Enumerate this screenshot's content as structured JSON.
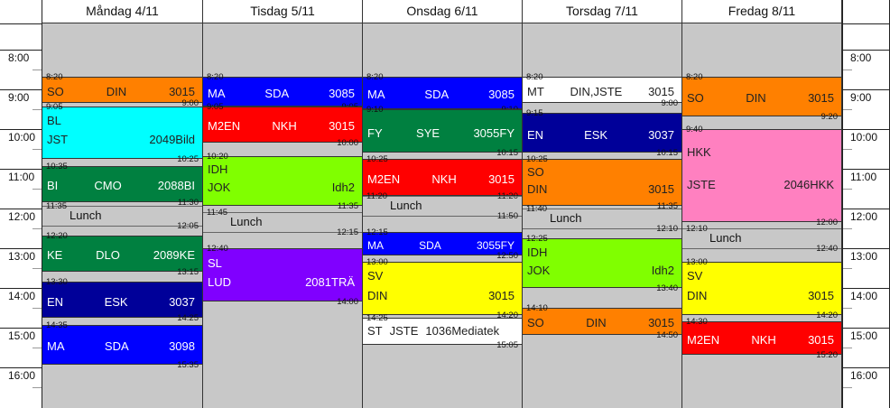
{
  "colors": {
    "orange": "#ff8000",
    "cyan": "#00ffff",
    "green": "#008040",
    "navy": "#000099",
    "blue": "#0000ff",
    "red": "#ff0000",
    "lime": "#80ff00",
    "purple": "#8000ff",
    "yellow": "#ffff00",
    "pink": "#ff80c0",
    "white": "#ffffff",
    "grey": "#c8c8c8"
  },
  "hours": [
    "8:00",
    "9:00",
    "10:00",
    "11:00",
    "12:00",
    "13:00",
    "14:00",
    "15:00",
    "16:00"
  ],
  "days": [
    {
      "id": "mon",
      "title": "Måndag 4/11",
      "lessons": [
        {
          "start": "8:20",
          "end": "9:00",
          "subject": "SO",
          "teacher": "DIN",
          "room": "3015",
          "color": "orange",
          "layout": "single",
          "text": "dark"
        },
        {
          "start": "9:05",
          "end": "10:25",
          "subject": "BL",
          "teacher": "JST",
          "room": "2049Bild",
          "color": "cyan",
          "layout": "stack",
          "text": "dark"
        },
        {
          "start": "10:35",
          "end": "11:30",
          "subject": "BI",
          "teacher": "CMO",
          "room": "2088BI",
          "color": "green",
          "layout": "single",
          "text": "light"
        },
        {
          "start": "12:20",
          "end": "13:15",
          "subject": "KE",
          "teacher": "DLO",
          "room": "2089KE",
          "color": "green",
          "layout": "single",
          "text": "light"
        },
        {
          "start": "13:30",
          "end": "14:25",
          "subject": "EN",
          "teacher": "ESK",
          "room": "3037",
          "color": "navy",
          "layout": "single",
          "text": "light"
        },
        {
          "start": "14:35",
          "end": "15:35",
          "subject": "MA",
          "teacher": "SDA",
          "room": "3098",
          "color": "blue",
          "layout": "single",
          "text": "light"
        }
      ],
      "lunches": [
        {
          "start": "11:35",
          "end": "12:05",
          "label": "Lunch"
        }
      ]
    },
    {
      "id": "tue",
      "title": "Tisdag 5/11",
      "lessons": [
        {
          "start": "8:20",
          "end": "9:05",
          "subject": "MA",
          "teacher": "SDA",
          "room": "3085",
          "color": "blue",
          "layout": "single",
          "text": "light"
        },
        {
          "start": "9:05",
          "end": "10:00",
          "subject": "M2EN",
          "teacher": "NKH",
          "room": "3015",
          "color": "red",
          "layout": "single",
          "text": "light"
        },
        {
          "start": "10:20",
          "end": "11:35",
          "subject": "IDH",
          "teacher": "JOK",
          "room": "Idh2",
          "color": "lime",
          "layout": "stack",
          "text": "dark"
        },
        {
          "start": "12:40",
          "end": "14:00",
          "subject": "SL",
          "teacher": "LUD",
          "room": "2081TRÄ",
          "color": "purple",
          "layout": "stack",
          "text": "light"
        }
      ],
      "lunches": [
        {
          "start": "11:45",
          "end": "12:15",
          "label": "Lunch"
        }
      ]
    },
    {
      "id": "wed",
      "title": "Onsdag 6/11",
      "lessons": [
        {
          "start": "8:20",
          "end": "9:10",
          "subject": "MA",
          "teacher": "SDA",
          "room": "3085",
          "color": "blue",
          "layout": "single",
          "text": "light"
        },
        {
          "start": "9:10",
          "end": "10:15",
          "subject": "FY",
          "teacher": "SYE",
          "room": "3055FY",
          "color": "green",
          "layout": "single",
          "text": "light"
        },
        {
          "start": "10:25",
          "end": "11:20",
          "subject": "M2EN",
          "teacher": "NKH",
          "room": "3015",
          "color": "red",
          "layout": "single",
          "text": "light"
        },
        {
          "start": "12:15",
          "end": "12:50",
          "subject": "MA",
          "teacher": "SDA",
          "room": "3055FY",
          "color": "blue",
          "layout": "single",
          "text": "light",
          "small": true
        },
        {
          "start": "13:00",
          "end": "14:20",
          "subject": "SV",
          "teacher": "DIN",
          "room": "3015",
          "color": "yellow",
          "layout": "stack",
          "text": "dark"
        },
        {
          "start": "14:25",
          "end": "15:05",
          "subject": "ST",
          "teacher": "JSTE",
          "room": "1036Mediatek",
          "color": "white",
          "layout": "tight",
          "text": "dark"
        }
      ],
      "lunches": [
        {
          "start": "11:20",
          "end": "11:50",
          "label": "Lunch"
        }
      ]
    },
    {
      "id": "thu",
      "title": "Torsdag 7/11",
      "lessons": [
        {
          "start": "8:20",
          "end": "9:00",
          "subject": "MT",
          "teacher": "DIN,JSTE",
          "room": "3015",
          "color": "white",
          "layout": "single",
          "text": "dark",
          "nostart": true
        },
        {
          "start": "9:15",
          "end": "10:15",
          "subject": "EN",
          "teacher": "ESK",
          "room": "3037",
          "color": "navy",
          "layout": "single",
          "text": "light"
        },
        {
          "start": "10:25",
          "end": "11:35",
          "subject": "SO",
          "teacher": "DIN",
          "room": "3015",
          "color": "orange",
          "layout": "stack",
          "text": "dark"
        },
        {
          "start": "12:25",
          "end": "13:40",
          "subject": "IDH",
          "teacher": "JOK",
          "room": "Idh2",
          "color": "lime",
          "layout": "stack",
          "text": "dark"
        },
        {
          "start": "14:10",
          "end": "14:50",
          "subject": "SO",
          "teacher": "DIN",
          "room": "3015",
          "color": "orange",
          "layout": "single",
          "text": "dark"
        }
      ],
      "lunches": [
        {
          "start": "11:40",
          "end": "12:10",
          "label": "Lunch"
        }
      ]
    },
    {
      "id": "fri",
      "title": "Fredag 8/11",
      "lessons": [
        {
          "start": "8:20",
          "end": "9:20",
          "subject": "SO",
          "teacher": "DIN",
          "room": "3015",
          "color": "orange",
          "layout": "single",
          "text": "dark"
        },
        {
          "start": "9:40",
          "end": "12:00",
          "subject": "HKK",
          "teacher": "JSTE",
          "room": "2046HKK",
          "color": "pink",
          "layout": "stack",
          "text": "dark"
        },
        {
          "start": "13:00",
          "end": "14:20",
          "subject": "SV",
          "teacher": "DIN",
          "room": "3015",
          "color": "yellow",
          "layout": "stack",
          "text": "dark"
        },
        {
          "start": "14:30",
          "end": "15:20",
          "subject": "M2EN",
          "teacher": "NKH",
          "room": "3015",
          "color": "red",
          "layout": "single",
          "text": "light"
        }
      ],
      "lunches": [
        {
          "start": "12:10",
          "end": "12:40",
          "label": "Lunch"
        }
      ]
    }
  ]
}
